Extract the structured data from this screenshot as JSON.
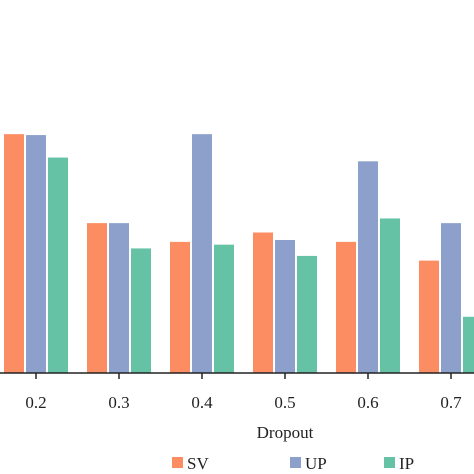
{
  "chart_data": {
    "type": "bar",
    "xlabel": "Dropout",
    "ylabel": "",
    "categories": [
      "0.2",
      "0.3",
      "0.4",
      "0.5",
      "0.6",
      "0.7"
    ],
    "series": [
      {
        "name": "SV",
        "color": "#fc8d62",
        "values": [
          0.955,
          0.86,
          0.84,
          0.85,
          0.84,
          0.82
        ]
      },
      {
        "name": "UP",
        "color": "#8da0cb",
        "values": [
          0.954,
          0.86,
          0.955,
          0.842,
          0.926,
          0.86
        ]
      },
      {
        "name": "IP",
        "color": "#66c2a5",
        "values": [
          0.93,
          0.833,
          0.837,
          0.825,
          0.865,
          0.76
        ]
      }
    ],
    "ylim": [
      0.7,
      1.0
    ],
    "grid": false,
    "legend": "bottom"
  }
}
